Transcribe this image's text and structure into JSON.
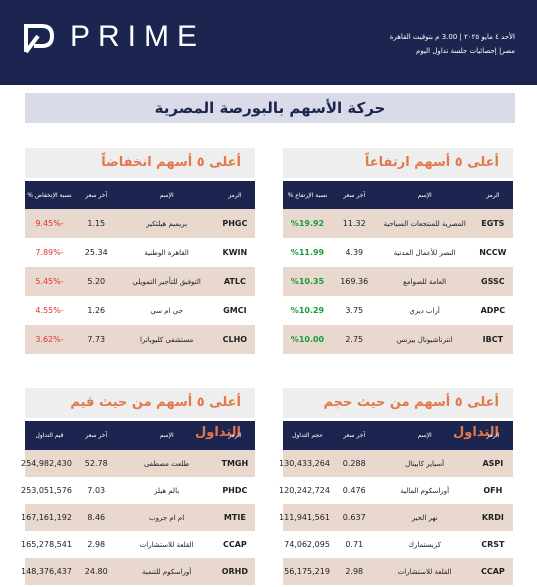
{
  "header": {
    "logo": "PRIME",
    "date_line": "الأحد ٤ مايو ٢٠٢٥ | 3.00 م بتوقيت القاهرة",
    "subtitle": "مصر| إحصائيات جلسة تداول اليوم"
  },
  "title": "حركة الأسهم بالبورصة المصرية",
  "tables": [
    {
      "title": "أعلى ٥ أسهم ارتفاعاً",
      "columns": [
        "الرمز",
        "الإسم",
        "آخر سعر",
        "نسبة الإرتفاع %"
      ],
      "rows": [
        [
          "EGTS",
          "المصرية للمنتجعات السياحية",
          "11.32",
          "%19.92"
        ],
        [
          "NCCW",
          "النصر للأعمال المدنية",
          "4.39",
          "%11.99"
        ],
        [
          "GSSC",
          "العامة للصوامع",
          "169.36",
          "%10.35"
        ],
        [
          "ADPC",
          "أراب ديري",
          "3.75",
          "%10.29"
        ],
        [
          "IBCT",
          "انترناشيونال بيزنس",
          "2.75",
          "%10.00"
        ]
      ]
    },
    {
      "title": "أعلى ٥ أسهم انخفاضاً",
      "columns": [
        "الرمز",
        "الإسم",
        "آخر سعر",
        "نسبة الإنخفاض %"
      ],
      "rows": [
        [
          "PHGC",
          "بريميم هيلثكير",
          "1.15",
          "-9.45%"
        ],
        [
          "KWIN",
          "القاهرة الوطنية",
          "25.34",
          "-7.89%"
        ],
        [
          "ATLC",
          "التوفيق للتأجير التمويلي",
          "5.20",
          "-5.45%"
        ],
        [
          "GMCI",
          "جي ام سي",
          "1.26",
          "-4.55%"
        ],
        [
          "CLHO",
          "مستشفى كليوباترا",
          "7.73",
          "-3.62%"
        ]
      ]
    },
    {
      "title": "أعلى ٥ أسهم من حيث حجم التداول",
      "columns": [
        "الرمز",
        "الإسم",
        "آخر سعر",
        "حجم التداول"
      ],
      "rows": [
        [
          "ASPI",
          "أسباير كابيتال",
          "0.288",
          "130,433,264"
        ],
        [
          "OFH",
          "أوراسكوم المالية",
          "0.476",
          "120,242,724"
        ],
        [
          "KRDI",
          "نهر الخير",
          "0.637",
          "111,941,561"
        ],
        [
          "CRST",
          "كريستمارك",
          "0.71",
          "74,062,095"
        ],
        [
          "CCAP",
          "القلعة للاستشارات",
          "2.98",
          "56,175,219"
        ]
      ]
    },
    {
      "title": "أعلى ٥ أسهم من حيث قيم التداول",
      "columns": [
        "الرمز",
        "الإسم",
        "آخر سعر",
        "قيم التداول"
      ],
      "rows": [
        [
          "TMGH",
          "طلعت مصطفى",
          "52.78",
          "254,982,430"
        ],
        [
          "PHDC",
          "بالم هيلز",
          "7.03",
          "253,051,576"
        ],
        [
          "MTIE",
          "ام ام جروب",
          "8.46",
          "167,161,192"
        ],
        [
          "CCAP",
          "القلعة للاستشارات",
          "2.98",
          "165,278,541"
        ],
        [
          "ORHD",
          "أوراسكوم للتنمية",
          "24.80",
          "148,376,437"
        ]
      ]
    }
  ]
}
